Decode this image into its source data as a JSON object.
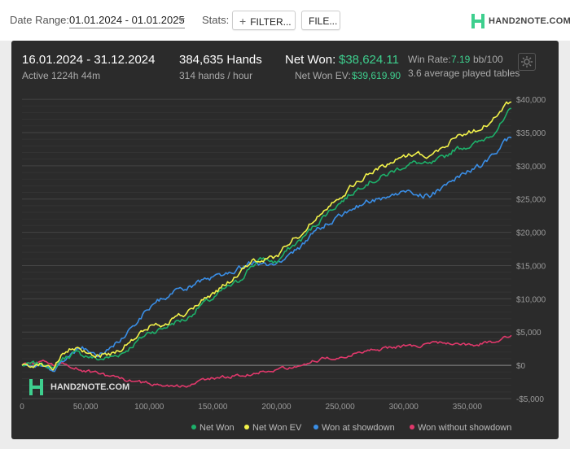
{
  "toolbar": {
    "date_range_label": "Date Range:",
    "date_range_value": "01.01.2024 - 01.01.2025",
    "stats_label": "Stats:",
    "filter_button": "FILTER...",
    "file_button": "FILE...",
    "brand": "HAND2NOTE.COM"
  },
  "stats": {
    "period": "16.01.2024 - 31.12.2024",
    "active": "Active 1224h 44m",
    "hands": "384,635 Hands",
    "hands_per_hour": "314 hands / hour",
    "net_won_label": "Net Won:",
    "net_won_value": "$38,624.11",
    "net_won_ev_label": "Net Won  EV:",
    "net_won_ev_value": "$39,619.90",
    "win_rate_label": "Win Rate:",
    "win_rate_value": "7.19",
    "win_rate_unit": "bb/100",
    "tables": "3.6 average played tables"
  },
  "watermark": "HAND2NOTE.COM",
  "icons": {
    "settings": "gear-icon",
    "logo": "hand2note-logo-icon",
    "filter": "plus-icon",
    "dropdown": "chevron-down-icon"
  },
  "colors": {
    "background": "#2b2b2b",
    "net_won": "#1db06a",
    "net_won_ev": "#f2f24a",
    "won_at_showdown": "#3a8ee6",
    "won_without_showdown": "#e0386b",
    "accent": "#3ecf8e"
  },
  "chart_data": {
    "type": "line",
    "x_ticks": [
      0,
      50000,
      100000,
      150000,
      200000,
      250000,
      300000,
      350000
    ],
    "x_tick_labels": [
      "0",
      "50,000",
      "100,000",
      "150,000",
      "200,000",
      "250,000",
      "300,000",
      "350,000"
    ],
    "xlim": [
      0,
      384635
    ],
    "y_ticks": [
      -5000,
      0,
      5000,
      10000,
      15000,
      20000,
      25000,
      30000,
      35000,
      40000
    ],
    "y_tick_labels": [
      "-$5,000",
      "$0",
      "$5,000",
      "$10,000",
      "$15,000",
      "$20,000",
      "$25,000",
      "$30,000",
      "$35,000",
      "$40,000"
    ],
    "ylim": [
      -5000,
      40500
    ],
    "grid": true,
    "legend_position": "bottom-right",
    "x": [
      0,
      10000,
      20000,
      25000,
      30000,
      40000,
      50000,
      60000,
      70000,
      80000,
      90000,
      100000,
      110000,
      120000,
      130000,
      140000,
      150000,
      160000,
      170000,
      180000,
      190000,
      200000,
      210000,
      220000,
      230000,
      240000,
      250000,
      260000,
      270000,
      280000,
      290000,
      300000,
      310000,
      320000,
      330000,
      340000,
      350000,
      360000,
      370000,
      380000,
      384635
    ],
    "series": [
      {
        "name": "Net Won",
        "color": "#1db06a",
        "values": [
          0,
          100,
          200,
          -800,
          800,
          1800,
          1500,
          900,
          1200,
          2000,
          3500,
          5000,
          5500,
          6500,
          7000,
          9000,
          10000,
          11500,
          12500,
          15000,
          16000,
          15500,
          17500,
          19000,
          21000,
          23000,
          24500,
          26000,
          27500,
          28000,
          29000,
          30000,
          30500,
          30000,
          31000,
          32500,
          33000,
          33500,
          35000,
          37000,
          38624
        ]
      },
      {
        "name": "Net Won  EV",
        "color": "#f2f24a",
        "values": [
          0,
          200,
          100,
          -500,
          1200,
          2500,
          2000,
          1500,
          1800,
          2800,
          4200,
          5800,
          6200,
          7200,
          7800,
          9500,
          10800,
          12200,
          13500,
          15500,
          16000,
          16200,
          18500,
          20000,
          22000,
          24000,
          25500,
          27000,
          28500,
          29500,
          30500,
          31500,
          32000,
          31500,
          32500,
          34500,
          35000,
          35500,
          37000,
          39000,
          39620
        ]
      },
      {
        "name": "Won at showdown",
        "color": "#3a8ee6",
        "values": [
          0,
          -300,
          -600,
          -1200,
          500,
          2200,
          2500,
          1800,
          2500,
          4500,
          6500,
          8500,
          10000,
          11000,
          11500,
          12500,
          13000,
          14000,
          14500,
          15500,
          15200,
          15000,
          16500,
          18000,
          20000,
          21500,
          22500,
          23500,
          24500,
          25000,
          25500,
          26000,
          25800,
          25500,
          26500,
          28000,
          29000,
          30000,
          31500,
          33500,
          34200
        ]
      },
      {
        "name": "Won without showdown",
        "color": "#e0386b",
        "values": [
          0,
          300,
          600,
          200,
          300,
          -400,
          -800,
          -1200,
          -1800,
          -2200,
          -2500,
          -2800,
          -2800,
          -3200,
          -3000,
          -2300,
          -2000,
          -1700,
          -1500,
          -1300,
          -900,
          -600,
          -200,
          200,
          700,
          1100,
          1300,
          1700,
          2300,
          2300,
          2700,
          2900,
          2900,
          3200,
          3400,
          3300,
          3100,
          3200,
          3500,
          4200,
          4500
        ]
      }
    ]
  }
}
